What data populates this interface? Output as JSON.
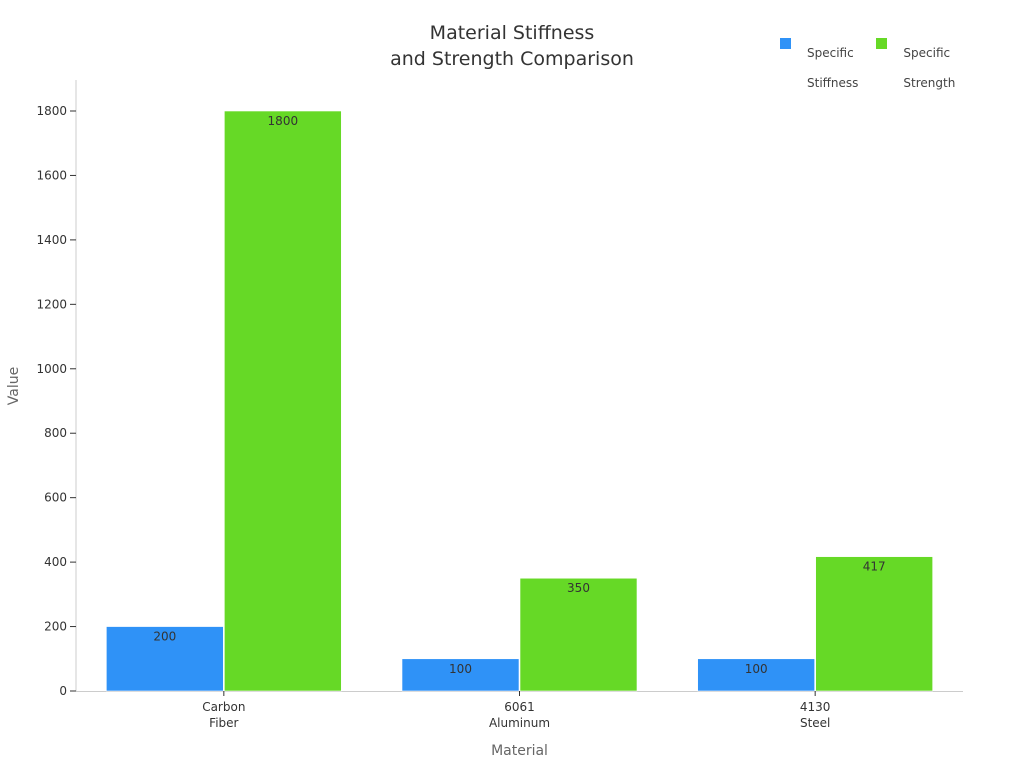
{
  "chart_data": {
    "type": "bar",
    "title": "Material Stiffness\nand Strength Comparison",
    "title_lines": [
      "Material Stiffness",
      "and Strength Comparison"
    ],
    "categories": [
      "Carbon Fiber",
      "6061 Aluminum",
      "4130 Steel"
    ],
    "category_lines": [
      [
        "Carbon",
        "Fiber"
      ],
      [
        "6061",
        "Aluminum"
      ],
      [
        "4130",
        "Steel"
      ]
    ],
    "series": [
      {
        "name": "Specific Stiffness",
        "legend_lines": [
          "Specific",
          "Stiffness"
        ],
        "color": "#2f92f7",
        "values": [
          200,
          100,
          100
        ]
      },
      {
        "name": "Specific Strength",
        "legend_lines": [
          "Specific",
          "Strength"
        ],
        "color": "#66d926",
        "values": [
          1800,
          350,
          417
        ]
      }
    ],
    "xlabel": "Material",
    "ylabel": "Value",
    "ylim": [
      0,
      1800
    ],
    "yticks": [
      0,
      200,
      400,
      600,
      800,
      1000,
      1200,
      1400,
      1600,
      1800
    ],
    "grid": false,
    "legend_position": "top-right",
    "data_labels": true
  }
}
